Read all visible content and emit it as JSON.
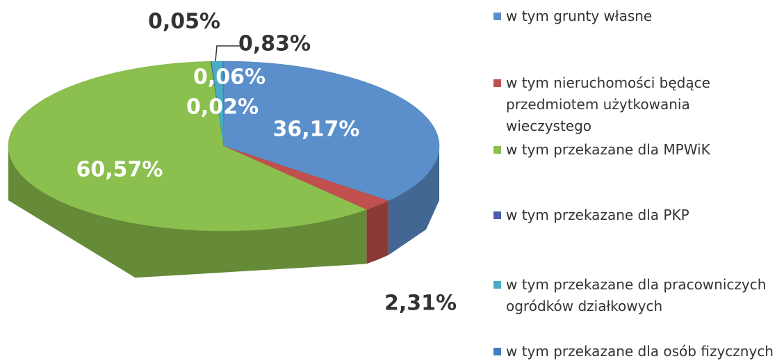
{
  "chart_data": {
    "type": "pie3d",
    "categories": [
      "w tym grunty własne",
      "w tym nieruchomości będące przedmiotem użytkowania wieczystego",
      "w tym przekazane dla MPWiK",
      "w tym przekazane dla PKP",
      "w tym przekazane dla pracowniczych ogródków działkowych",
      "w tym przekazane dla osób fizycznych",
      null
    ],
    "values": [
      36.17,
      2.31,
      60.57,
      0.05,
      0.83,
      0.06,
      0.02
    ],
    "value_labels": [
      "36,17%",
      "2,31%",
      "60,57%",
      "0,05%",
      "0,83%",
      "0,06%",
      "0,02%"
    ],
    "colors": [
      "#5a8fcb",
      "#c0504d",
      "#8cc04e",
      "#4a5fa8",
      "#4bacc6",
      "#3f7fc2",
      "#8a8a8a"
    ],
    "legend": "right"
  }
}
